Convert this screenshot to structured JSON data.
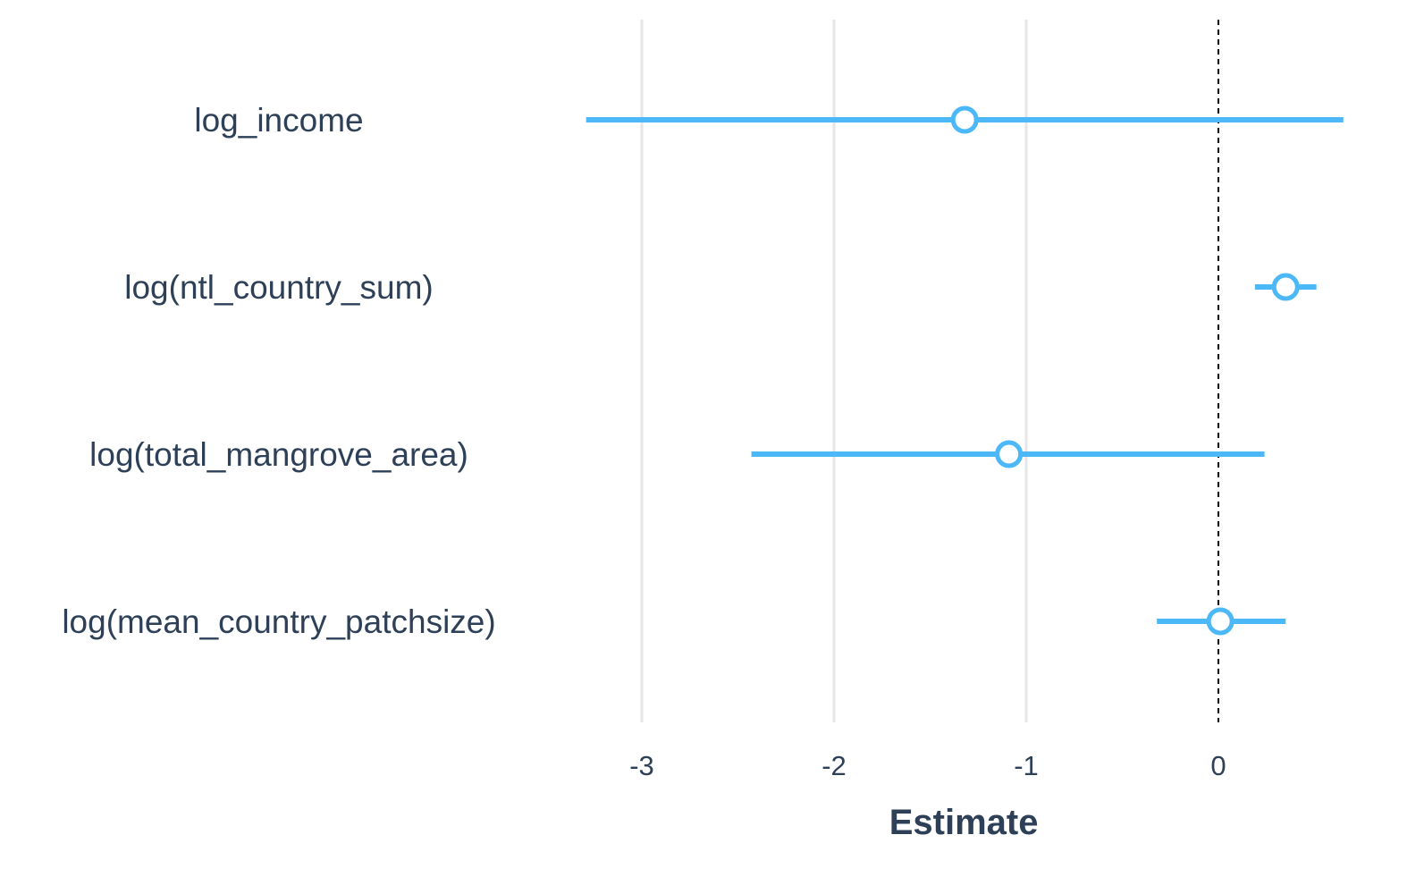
{
  "chart_data": {
    "type": "coefficient-plot",
    "xlabel": "Estimate",
    "xlim": [
      -3.3,
      0.65
    ],
    "x_ticks": [
      -3,
      -2,
      -1,
      0
    ],
    "x_tick_labels": [
      "-3",
      "-2",
      "-1",
      "0"
    ],
    "reference_line": 0,
    "grid": true,
    "terms": [
      {
        "label": "log_income",
        "estimate": -1.32,
        "ci_low": -3.29,
        "ci_high": 0.65
      },
      {
        "label": "log(ntl_country_sum)",
        "estimate": 0.35,
        "ci_low": 0.19,
        "ci_high": 0.51
      },
      {
        "label": "log(total_mangrove_area)",
        "estimate": -1.09,
        "ci_low": -2.43,
        "ci_high": 0.24
      },
      {
        "label": "log(mean_country_patchsize)",
        "estimate": 0.01,
        "ci_low": -0.32,
        "ci_high": 0.35
      }
    ],
    "colors": {
      "series": "#4db8f7",
      "text": "#2e4057",
      "grid": "#e6e6e6",
      "reference": "#000000"
    }
  }
}
